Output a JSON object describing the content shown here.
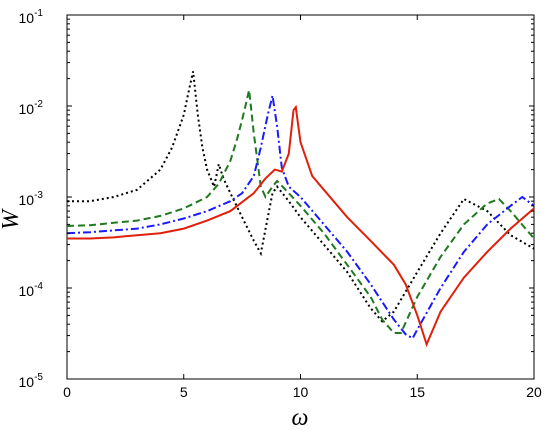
{
  "chart_data": {
    "type": "line",
    "title": "",
    "xlabel": "ω",
    "ylabel": "W",
    "xlim": [
      0,
      20
    ],
    "ylim": [
      1e-05,
      0.1
    ],
    "yscale": "log",
    "grid": false,
    "legend": "none",
    "x_ticks": [
      "0",
      "5",
      "10",
      "15",
      "20"
    ],
    "y_ticks": [
      {
        "base": "10",
        "exp": "-5"
      },
      {
        "base": "10",
        "exp": "-4"
      },
      {
        "base": "10",
        "exp": "-3"
      },
      {
        "base": "10",
        "exp": "-2"
      },
      {
        "base": "10",
        "exp": "-1"
      }
    ],
    "series": [
      {
        "color": "#000000",
        "dash": "2,3",
        "x": [
          0,
          1,
          2,
          3,
          4,
          4.5,
          5,
          5.2,
          5.4,
          5.6,
          5.8,
          6,
          6.3,
          6.5,
          6.7,
          7,
          7.5,
          8,
          8.3,
          8.6,
          8.8,
          9,
          9.5,
          10,
          11,
          12,
          13,
          13.5,
          14,
          15,
          16,
          17,
          18,
          19,
          20
        ],
        "y": [
          0.0009,
          0.0009,
          0.001,
          0.0012,
          0.002,
          0.0035,
          0.008,
          0.014,
          0.024,
          0.008,
          0.0035,
          0.002,
          0.0013,
          0.0023,
          0.0016,
          0.0011,
          0.0006,
          0.00033,
          0.00024,
          0.0006,
          0.0011,
          0.0013,
          0.0009,
          0.0006,
          0.0003,
          0.00015,
          6e-05,
          4.3e-05,
          5.5e-05,
          0.00015,
          0.0004,
          0.00095,
          0.0007,
          0.00038,
          0.00027
        ]
      },
      {
        "color": "#1f7a1f",
        "dash": "7,4",
        "x": [
          0,
          1,
          2,
          3,
          4,
          5,
          6,
          6.5,
          7,
          7.3,
          7.6,
          7.8,
          8,
          8.3,
          8.5,
          8.8,
          9,
          9.5,
          10,
          11,
          12,
          13,
          13.5,
          14,
          14.3,
          15,
          16,
          17,
          18,
          18.5,
          19,
          20
        ],
        "y": [
          0.00048,
          0.00049,
          0.00052,
          0.00055,
          0.00062,
          0.00075,
          0.001,
          0.0014,
          0.0025,
          0.0045,
          0.009,
          0.015,
          0.005,
          0.0013,
          0.001,
          0.0013,
          0.0015,
          0.0011,
          0.0008,
          0.0004,
          0.00018,
          8e-05,
          4.5e-05,
          3.2e-05,
          3.2e-05,
          8e-05,
          0.00022,
          0.0005,
          0.00085,
          0.00095,
          0.0007,
          0.00035
        ]
      },
      {
        "color": "#1a1aff",
        "dash": "8,3,2,3",
        "x": [
          0,
          1,
          2,
          3,
          4,
          5,
          6,
          7,
          7.5,
          8,
          8.3,
          8.6,
          8.8,
          9,
          9.2,
          9.5,
          10,
          11,
          12,
          13,
          14,
          14.5,
          14.8,
          15,
          16,
          17,
          18,
          19,
          19.5,
          20
        ],
        "y": [
          0.0004,
          0.00041,
          0.00043,
          0.00045,
          0.0005,
          0.00058,
          0.0007,
          0.0009,
          0.0011,
          0.0017,
          0.0035,
          0.008,
          0.013,
          0.006,
          0.0021,
          0.0013,
          0.001,
          0.0005,
          0.00025,
          0.00011,
          4.5e-05,
          3.1e-05,
          2.8e-05,
          3.5e-05,
          0.0001,
          0.00025,
          0.0005,
          0.0008,
          0.001,
          0.0008
        ]
      },
      {
        "color": "#e0200a",
        "dash": "",
        "x": [
          0,
          1,
          2,
          3,
          4,
          5,
          6,
          7,
          8,
          8.5,
          8.9,
          9.2,
          9.5,
          9.7,
          9.8,
          10,
          10.5,
          11,
          12,
          13,
          14,
          14.5,
          15,
          15.2,
          15.4,
          16,
          17,
          18,
          19,
          20
        ],
        "y": [
          0.00035,
          0.00035,
          0.00036,
          0.00038,
          0.0004,
          0.00045,
          0.00055,
          0.0007,
          0.0011,
          0.0016,
          0.002,
          0.0019,
          0.003,
          0.009,
          0.0097,
          0.004,
          0.0017,
          0.0012,
          0.0006,
          0.00033,
          0.00018,
          0.00011,
          5e-05,
          3.5e-05,
          2.4e-05,
          5.5e-05,
          0.00013,
          0.00025,
          0.00045,
          0.00075
        ]
      }
    ]
  }
}
